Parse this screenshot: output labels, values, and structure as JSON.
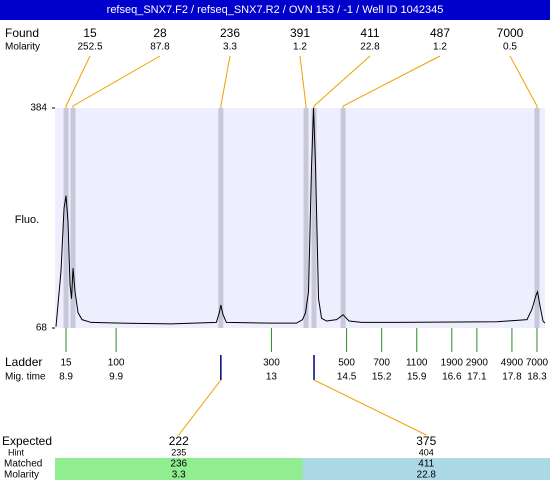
{
  "title": "refseq_SNX7.F2 / refseq_SNX7.R2 / OVN 153 / -1 / Well ID 1042345",
  "found": {
    "label": "Found",
    "molarity_label": "Molarity",
    "peaks": [
      {
        "size": 15,
        "molarity": 252.5,
        "time": 8.9
      },
      {
        "size": 28,
        "molarity": 87.8,
        "time": 9.04
      },
      {
        "size": 236,
        "molarity": 3.3,
        "time": 11.99
      },
      {
        "size": 391,
        "molarity": 1.2,
        "time": 13.69
      },
      {
        "size": 411,
        "molarity": 22.8,
        "time": 13.85
      },
      {
        "size": 487,
        "molarity": 1.2,
        "time": 14.43
      },
      {
        "size": 7000,
        "molarity": 0.5,
        "time": 18.3
      }
    ]
  },
  "chart_data": {
    "type": "line",
    "y_label": "Fluo.",
    "ylim": [
      68,
      384
    ],
    "yticks": [
      68,
      384
    ],
    "xlim": [
      8.68,
      18.46
    ],
    "color": "#000000",
    "background": "#eeeeff",
    "band_color": "#c8c8da",
    "x": [
      8.7,
      8.8,
      8.86,
      8.9,
      8.94,
      8.98,
      9.01,
      9.04,
      9.08,
      9.14,
      9.22,
      9.4,
      10.0,
      11.0,
      11.9,
      11.96,
      11.99,
      12.03,
      12.1,
      13.0,
      13.5,
      13.62,
      13.68,
      13.74,
      13.8,
      13.84,
      13.88,
      13.94,
      14.0,
      14.1,
      14.3,
      14.43,
      14.55,
      14.8,
      15.5,
      17.5,
      18.1,
      18.2,
      18.28,
      18.31,
      18.36,
      18.42,
      18.46
    ],
    "values": [
      70,
      150,
      240,
      258,
      220,
      130,
      110,
      154,
      120,
      90,
      80,
      76,
      75,
      74,
      76,
      90,
      101,
      88,
      76,
      75,
      75,
      80,
      90,
      120,
      300,
      384,
      300,
      110,
      82,
      78,
      80,
      87,
      78,
      76,
      76,
      77,
      80,
      95,
      115,
      120,
      100,
      78,
      75
    ]
  },
  "ladder": {
    "label": "Ladder",
    "time_label": "Mig. time",
    "color": "#2a8a2a",
    "sizes": [
      15,
      100,
      300,
      500,
      700,
      1100,
      1900,
      2900,
      4900,
      7000
    ],
    "times": [
      8.9,
      9.9,
      13,
      14.5,
      15.2,
      15.9,
      16.6,
      17.1,
      17.8,
      18.3
    ]
  },
  "expected": {
    "label": "Expected",
    "hint_label": "Hint",
    "matched_label": "Matched",
    "molarity_label": "Molarity",
    "items": [
      {
        "size": 222,
        "hint": 235,
        "matched": 236,
        "molarity": 3.3,
        "color": "#90ee90"
      },
      {
        "size": 375,
        "hint": 404,
        "matched": 411,
        "molarity": 22.8,
        "color": "#add8e6"
      }
    ]
  }
}
